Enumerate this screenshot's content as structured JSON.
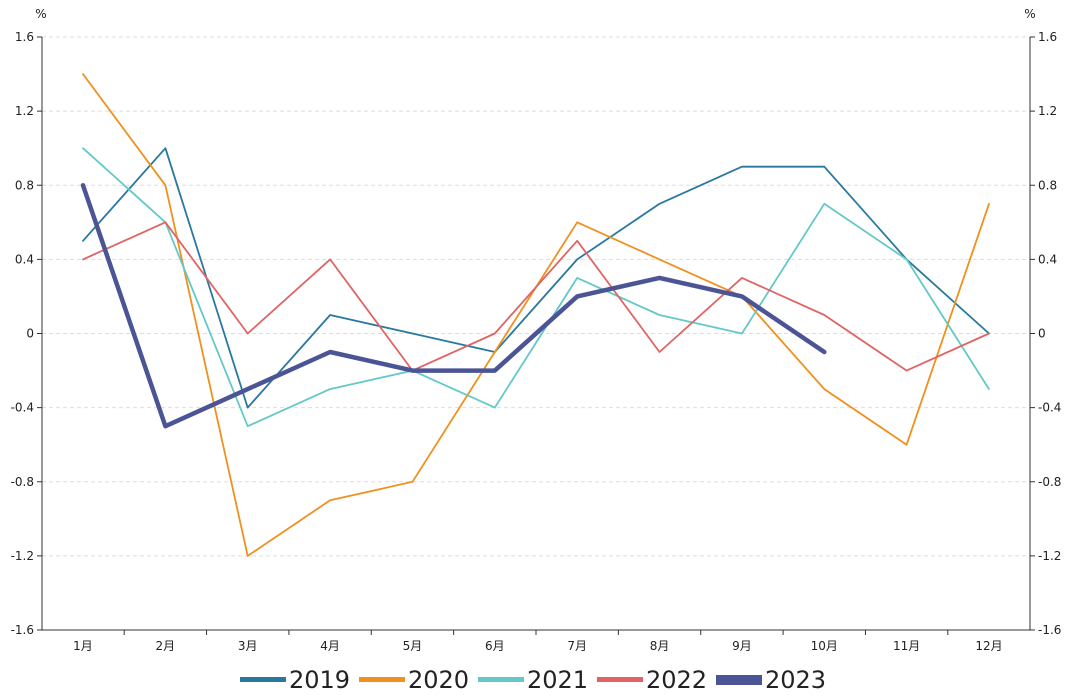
{
  "chart_data": {
    "type": "line",
    "title": "",
    "y_unit_left": "%",
    "y_unit_right": "%",
    "categories": [
      "1月",
      "2月",
      "3月",
      "4月",
      "5月",
      "6月",
      "7月",
      "8月",
      "9月",
      "10月",
      "11月",
      "12月"
    ],
    "ylim": [
      -1.6,
      1.6
    ],
    "yticks": [
      "1.6",
      "1.2",
      "0.8",
      "0.4",
      "0",
      "-0.4",
      "-0.8",
      "-1.2",
      "-1.6"
    ],
    "ytick_values": [
      1.6,
      1.2,
      0.8,
      0.4,
      0,
      -0.4,
      -0.8,
      -1.2,
      -1.6
    ],
    "grid": "horizontal-dashed",
    "legend_position": "bottom-center",
    "series": [
      {
        "name": "2019",
        "color": "#2878a0",
        "width": "thin",
        "values": [
          0.5,
          1.0,
          -0.4,
          0.1,
          0.0,
          -0.1,
          0.4,
          0.7,
          0.9,
          0.9,
          0.4,
          0.0
        ]
      },
      {
        "name": "2020",
        "color": "#f0901e",
        "width": "thin",
        "values": [
          1.4,
          0.8,
          -1.2,
          -0.9,
          -0.8,
          -0.1,
          0.6,
          0.4,
          0.2,
          -0.3,
          -0.6,
          0.7
        ]
      },
      {
        "name": "2021",
        "color": "#64c8c8",
        "width": "thin",
        "values": [
          1.0,
          0.6,
          -0.5,
          -0.3,
          -0.2,
          -0.4,
          0.3,
          0.1,
          0.0,
          0.7,
          0.4,
          -0.3
        ]
      },
      {
        "name": "2022",
        "color": "#e06464",
        "width": "thin",
        "values": [
          0.4,
          0.6,
          0.0,
          0.4,
          -0.2,
          0.0,
          0.5,
          -0.1,
          0.3,
          0.1,
          -0.2,
          0.0
        ]
      },
      {
        "name": "2023",
        "color": "#4b5596",
        "width": "thick",
        "values": [
          0.8,
          -0.5,
          -0.3,
          -0.1,
          -0.2,
          -0.2,
          0.2,
          0.3,
          0.2,
          -0.1,
          null,
          null
        ]
      }
    ]
  }
}
